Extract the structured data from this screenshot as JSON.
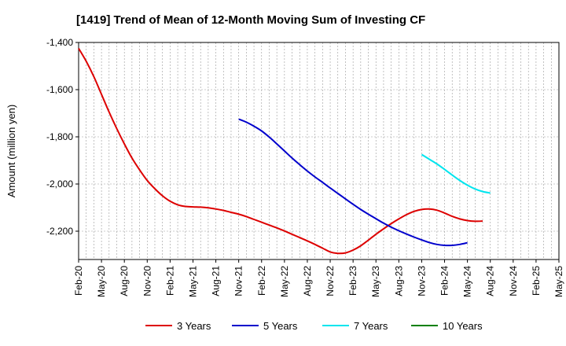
{
  "chart_data": {
    "type": "line",
    "title": "[1419]  Trend of Mean of 12-Month Moving Sum of Investing CF",
    "xlabel": "",
    "ylabel": "Amount (million yen)",
    "ylim": [
      -2320,
      -1400
    ],
    "yticks": [
      -1400,
      -1600,
      -1800,
      -2000,
      -2200
    ],
    "ytick_labels": [
      "-1,400",
      "-1,600",
      "-1,800",
      "-2,000",
      "-2,200"
    ],
    "x_start": "Feb-20",
    "x_end": "May-25",
    "month_count": 64,
    "xtick_labels": [
      "Feb-20",
      "May-20",
      "Aug-20",
      "Nov-20",
      "Feb-21",
      "May-21",
      "Aug-21",
      "Nov-21",
      "Feb-22",
      "May-22",
      "Aug-22",
      "Nov-22",
      "Feb-23",
      "May-23",
      "Aug-23",
      "Nov-23",
      "Feb-24",
      "May-24",
      "Aug-24",
      "Nov-24",
      "Feb-25",
      "May-25"
    ],
    "grid": true,
    "legend_position": "bottom",
    "series": [
      {
        "name": "3 Years",
        "color": "#dd0000",
        "start_index": 0,
        "values": [
          -1425,
          -1480,
          -1545,
          -1620,
          -1695,
          -1765,
          -1830,
          -1890,
          -1940,
          -1985,
          -2020,
          -2050,
          -2073,
          -2088,
          -2095,
          -2097,
          -2098,
          -2101,
          -2106,
          -2112,
          -2120,
          -2128,
          -2138,
          -2150,
          -2162,
          -2174,
          -2186,
          -2199,
          -2213,
          -2227,
          -2241,
          -2256,
          -2272,
          -2288,
          -2294,
          -2292,
          -2280,
          -2262,
          -2238,
          -2213,
          -2190,
          -2168,
          -2148,
          -2130,
          -2116,
          -2108,
          -2106,
          -2111,
          -2123,
          -2137,
          -2148,
          -2155,
          -2158,
          -2157
        ]
      },
      {
        "name": "5 Years",
        "color": "#0000cc",
        "start_index": 21,
        "values": [
          -1725,
          -1738,
          -1755,
          -1775,
          -1801,
          -1830,
          -1860,
          -1890,
          -1918,
          -1945,
          -1970,
          -1993,
          -2017,
          -2040,
          -2063,
          -2086,
          -2108,
          -2128,
          -2147,
          -2166,
          -2183,
          -2198,
          -2212,
          -2225,
          -2237,
          -2248,
          -2256,
          -2260,
          -2260,
          -2256,
          -2249
        ]
      },
      {
        "name": "7 Years",
        "color": "#00e5ee",
        "start_index": 45,
        "values": [
          -1875,
          -1895,
          -1915,
          -1938,
          -1962,
          -1985,
          -2005,
          -2021,
          -2032,
          -2038
        ]
      },
      {
        "name": "10 Years",
        "color": "#008000",
        "start_index": 0,
        "values": []
      }
    ]
  }
}
